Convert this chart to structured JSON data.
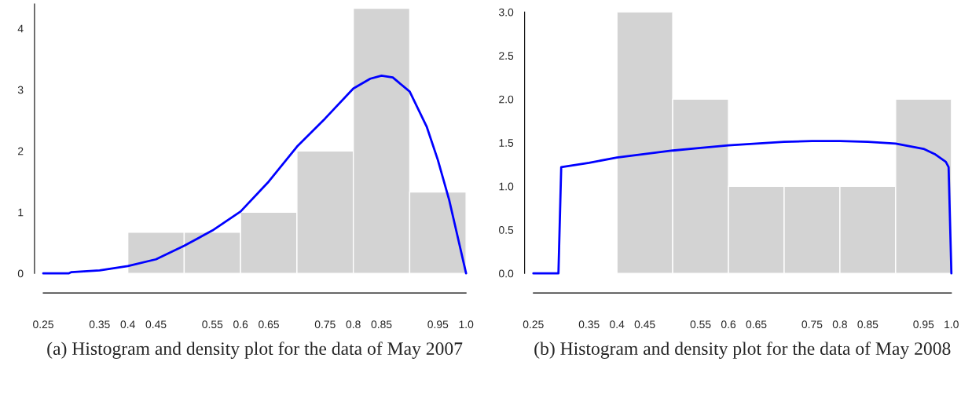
{
  "chart_data": [
    {
      "type": "histogram",
      "title": "(a) Histogram and density plot for the data of May 2007",
      "bins": [
        0.4,
        0.5,
        0.6,
        0.7,
        0.8,
        0.9,
        1.0
      ],
      "values": [
        0.67,
        0.67,
        1,
        2,
        4.33,
        1.33
      ],
      "color": "#d3d3d3",
      "series": [
        {
          "type": "line",
          "color": "#0000ff",
          "x": [
            0.25,
            0.295,
            0.3,
            0.35,
            0.4,
            0.45,
            0.5,
            0.55,
            0.6,
            0.65,
            0.7,
            0.75,
            0.8,
            0.83,
            0.85,
            0.87,
            0.9,
            0.93,
            0.95,
            0.97,
            0.98,
            1.0
          ],
          "values": [
            0,
            0,
            0.02,
            0.05,
            0.12,
            0.23,
            0.45,
            0.7,
            1.01,
            1.5,
            2.07,
            2.53,
            3.02,
            3.18,
            3.23,
            3.2,
            2.97,
            2.4,
            1.85,
            1.2,
            0.8,
            0
          ]
        }
      ],
      "xlim": [
        0.25,
        1.0
      ],
      "xticks": [
        0.25,
        0.35,
        0.4,
        0.45,
        0.55,
        0.6,
        0.65,
        0.75,
        0.8,
        0.85,
        0.95,
        {
          "value": 1.0,
          "label": "1.0"
        }
      ],
      "ylim": [
        0,
        4.4
      ],
      "yticks": [
        0,
        1,
        2,
        3,
        4
      ],
      "grid": false,
      "legend": false
    },
    {
      "type": "histogram",
      "title": "(b) Histogram and density plot for the data of May 2008",
      "bins": [
        0.4,
        0.5,
        0.6,
        0.7,
        0.8,
        0.9,
        1.0
      ],
      "values": [
        3,
        2,
        1,
        1,
        1,
        2
      ],
      "color": "#d3d3d3",
      "series": [
        {
          "type": "line",
          "color": "#0000ff",
          "x": [
            0.25,
            0.295,
            0.3,
            0.35,
            0.4,
            0.45,
            0.5,
            0.55,
            0.6,
            0.65,
            0.7,
            0.75,
            0.8,
            0.85,
            0.9,
            0.95,
            0.97,
            0.99,
            0.995,
            1.0
          ],
          "values": [
            0,
            0,
            1.22,
            1.27,
            1.33,
            1.37,
            1.41,
            1.44,
            1.47,
            1.49,
            1.51,
            1.52,
            1.52,
            1.51,
            1.49,
            1.43,
            1.37,
            1.28,
            1.22,
            0
          ]
        }
      ],
      "xlim": [
        0.25,
        1.0
      ],
      "xticks": [
        0.25,
        0.35,
        0.4,
        0.45,
        0.55,
        0.6,
        0.65,
        0.75,
        0.8,
        0.85,
        0.95,
        {
          "value": 1.0,
          "label": "1.0"
        }
      ],
      "ylim": [
        0,
        3
      ],
      "yticks": [
        {
          "value": 0,
          "label": "0.0"
        },
        0.5,
        {
          "value": 1,
          "label": "1.0"
        },
        1.5,
        {
          "value": 2,
          "label": "2.0"
        },
        2.5,
        {
          "value": 3,
          "label": "3.0"
        }
      ],
      "grid": false,
      "legend": false
    }
  ]
}
